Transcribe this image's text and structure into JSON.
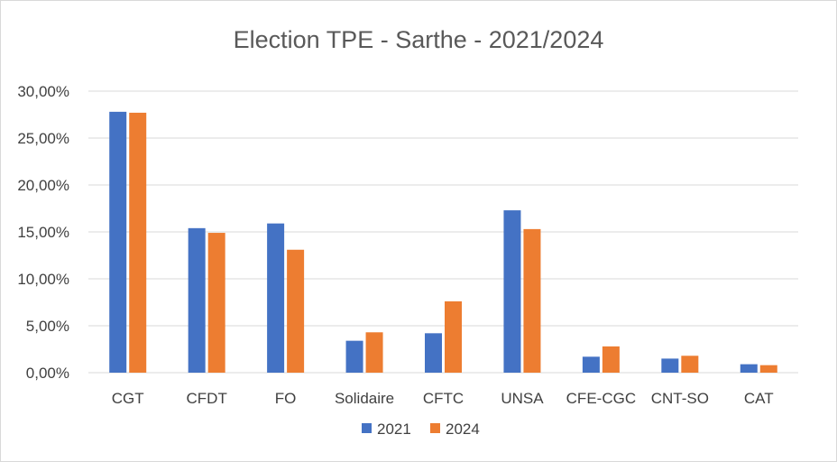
{
  "chart_data": {
    "type": "bar",
    "title": "Election TPE - Sarthe - 2021/2024",
    "xlabel": "",
    "ylabel": "",
    "categories": [
      "CGT",
      "CFDT",
      "FO",
      "Solidaire",
      "CFTC",
      "UNSA",
      "CFE-CGC",
      "CNT-SO",
      "CAT"
    ],
    "series": [
      {
        "name": "2021",
        "color": "#4472C4",
        "values": [
          27.8,
          15.4,
          15.9,
          3.4,
          4.2,
          17.3,
          1.7,
          1.5,
          0.9
        ]
      },
      {
        "name": "2024",
        "color": "#ED7D31",
        "values": [
          27.7,
          14.9,
          13.1,
          4.3,
          7.6,
          15.3,
          2.8,
          1.8,
          0.8
        ]
      }
    ],
    "ylim": [
      0,
      30
    ],
    "yticks": [
      0,
      5,
      10,
      15,
      20,
      25,
      30
    ],
    "ytick_labels": [
      "0,00%",
      "5,00%",
      "10,00%",
      "15,00%",
      "20,00%",
      "25,00%",
      "30,00%"
    ],
    "grid": true,
    "legend_position": "bottom"
  }
}
